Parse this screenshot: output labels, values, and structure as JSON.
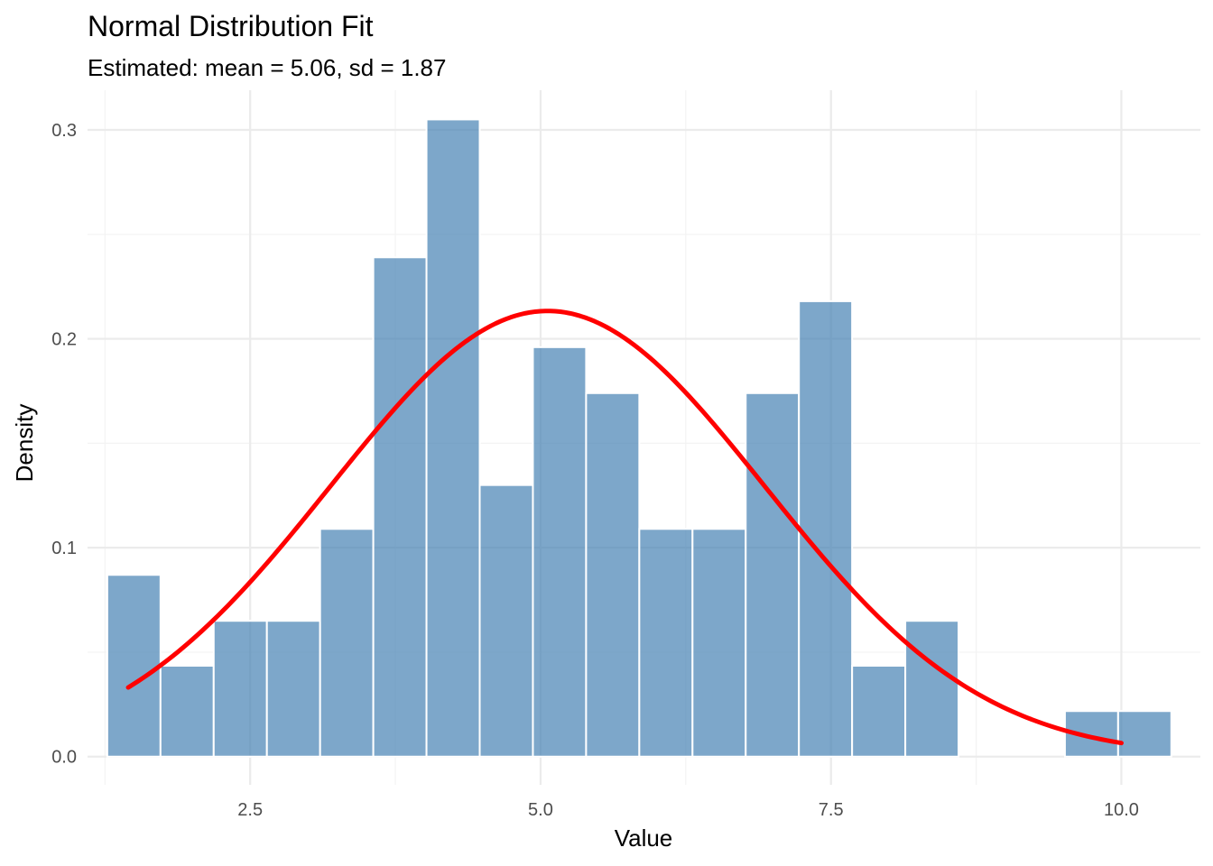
{
  "chart_data": {
    "type": "bar",
    "title": "Normal Distribution Fit",
    "subtitle": "Estimated: mean = 5.06, sd = 1.87",
    "xlabel": "Value",
    "ylabel": "Density",
    "xlim": [
      1.1,
      10.68
    ],
    "ylim": [
      -0.0135,
      0.319
    ],
    "x_ticks": [
      2.5,
      5.0,
      7.5,
      10.0
    ],
    "x_tick_labels": [
      "2.5",
      "5.0",
      "7.5",
      "10.0"
    ],
    "y_ticks": [
      0.0,
      0.1,
      0.2,
      0.3
    ],
    "y_tick_labels": [
      "0.0",
      "0.1",
      "0.2",
      "0.3"
    ],
    "grid": true,
    "bins": {
      "start": 1.27,
      "width": 0.458,
      "values": [
        0.087,
        0.0435,
        0.065,
        0.065,
        0.109,
        0.239,
        0.305,
        0.13,
        0.196,
        0.174,
        0.109,
        0.109,
        0.174,
        0.218,
        0.0435,
        0.065,
        0,
        0,
        0.0218,
        0.0218
      ]
    },
    "bar_color": "#4682B4",
    "bar_opacity": 0.7,
    "normal_fit": {
      "mean": 5.06,
      "sd": 1.87,
      "x_range": [
        1.45,
        10.0
      ],
      "color": "#FF0000"
    }
  }
}
